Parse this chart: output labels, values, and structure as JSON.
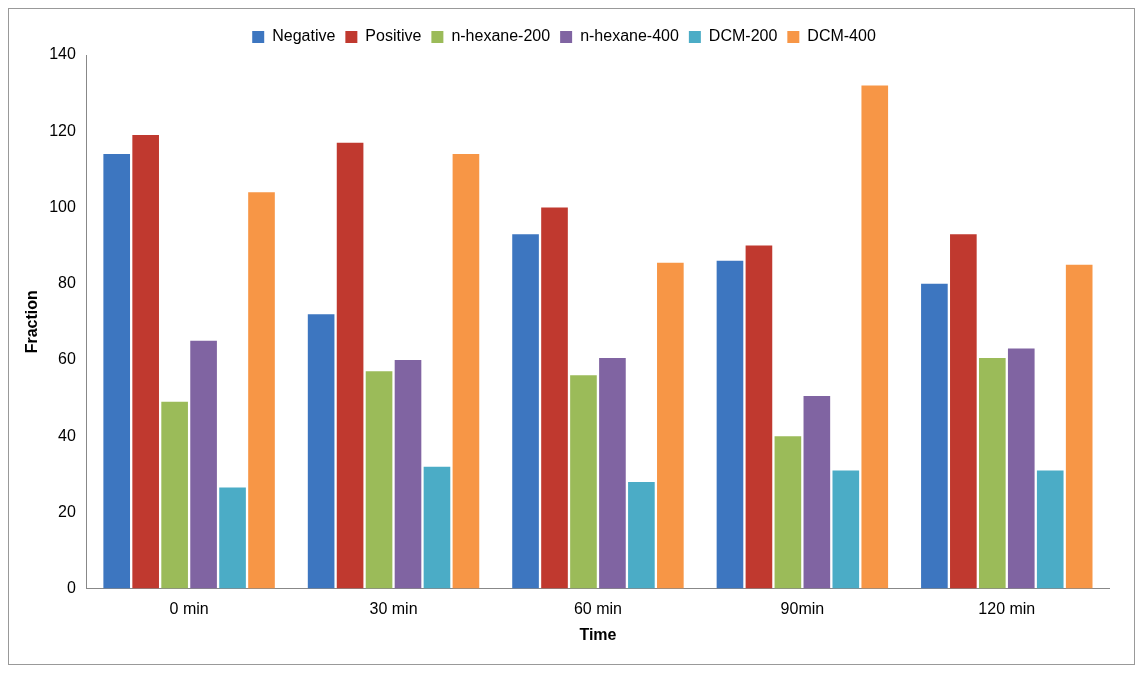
{
  "chart_data": {
    "type": "bar",
    "xlabel": "Time",
    "ylabel": "Fraction",
    "categories": [
      "0 min",
      "30 min",
      "60 min",
      "90min",
      "120 min"
    ],
    "series": [
      {
        "name": "Negative",
        "color": "#3d76c0",
        "values": [
          114,
          72,
          93,
          86,
          80
        ]
      },
      {
        "name": "Positive",
        "color": "#c0392f",
        "values": [
          119,
          117,
          100,
          90,
          93
        ]
      },
      {
        "name": "n-hexane-200",
        "color": "#9bbb59",
        "values": [
          49,
          57,
          56,
          40,
          60.5
        ]
      },
      {
        "name": "n-hexane-400",
        "color": "#8064a2",
        "values": [
          65,
          60,
          60.5,
          50.5,
          63
        ]
      },
      {
        "name": "DCM-200",
        "color": "#4bacc6",
        "values": [
          26.5,
          32,
          28,
          31,
          31
        ]
      },
      {
        "name": "DCM-400",
        "color": "#f79646",
        "values": [
          104,
          114,
          85.5,
          132,
          85
        ]
      }
    ],
    "ylim": [
      0,
      140
    ],
    "yticks": [
      0,
      20,
      40,
      60,
      80,
      100,
      120,
      140
    ],
    "grid": false,
    "legend": "top"
  }
}
